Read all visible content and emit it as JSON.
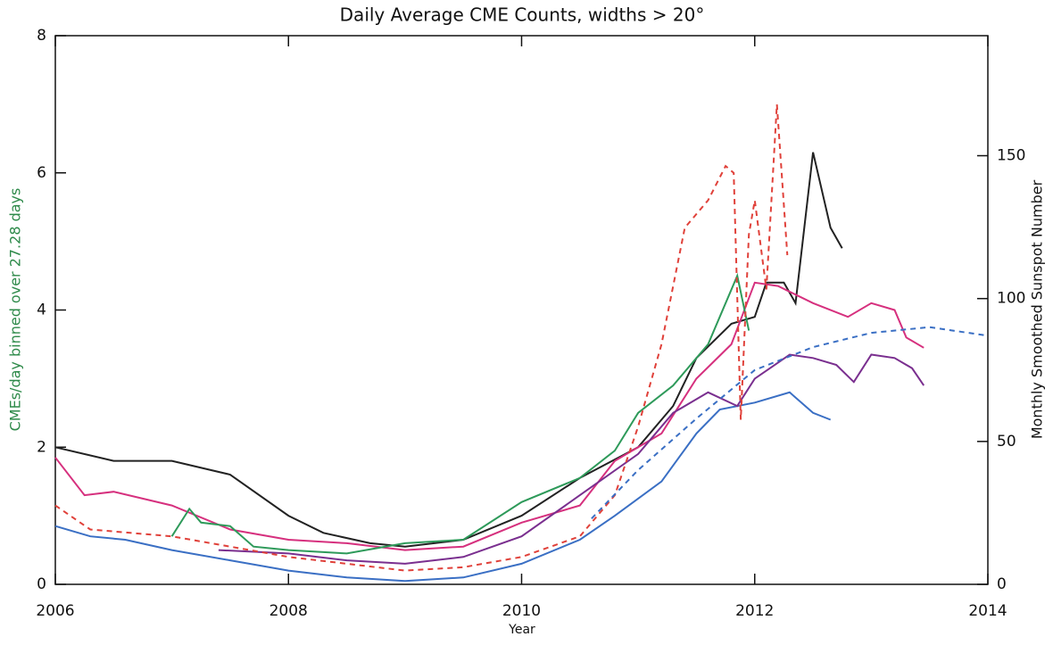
{
  "chart_data": {
    "type": "line",
    "title": "Daily Average CME Counts, widths >  20°",
    "x_label": "Year",
    "y_label": "CMEs/day binned over 27.28 days",
    "y2_label": "Monthly Smoothed Sunspot Number",
    "xlim": [
      2006,
      2014
    ],
    "xticks": [
      2006,
      2008,
      2010,
      2012,
      2014
    ],
    "ylim": [
      0,
      8
    ],
    "yticks": [
      0,
      2,
      4,
      6,
      8
    ],
    "y2lim": [
      0,
      192
    ],
    "y2ticks": [
      0,
      50,
      100,
      150
    ],
    "series": [
      {
        "color": "#222222",
        "dashed": false,
        "x": [
          2006,
          2006.5,
          2007,
          2007.5,
          2008,
          2008.3,
          2008.7,
          2009,
          2009.5,
          2010,
          2010.5,
          2011,
          2011.3,
          2011.5,
          2011.8,
          2012,
          2012.1,
          2012.25,
          2012.35,
          2012.5,
          2012.65,
          2012.75
        ],
        "values": [
          2.0,
          1.8,
          1.8,
          1.6,
          1.0,
          0.75,
          0.6,
          0.55,
          0.65,
          1.0,
          1.55,
          2.0,
          2.6,
          3.3,
          3.8,
          3.9,
          4.4,
          4.4,
          4.1,
          6.3,
          5.2,
          4.9
        ]
      },
      {
        "color": "#d6307e",
        "dashed": false,
        "x": [
          2006,
          2006.25,
          2006.5,
          2007,
          2007.5,
          2008,
          2008.5,
          2009,
          2009.5,
          2010,
          2010.5,
          2010.8,
          2011.2,
          2011.5,
          2011.8,
          2012,
          2012.2,
          2012.5,
          2012.8,
          2013,
          2013.2,
          2013.3,
          2013.45
        ],
        "values": [
          1.85,
          1.3,
          1.35,
          1.15,
          0.8,
          0.65,
          0.6,
          0.5,
          0.55,
          0.9,
          1.15,
          1.8,
          2.2,
          3.0,
          3.5,
          4.4,
          4.35,
          4.1,
          3.9,
          4.1,
          4.0,
          3.6,
          3.45
        ]
      },
      {
        "color": "#2e9a5a",
        "dashed": false,
        "x": [
          2007,
          2007.15,
          2007.25,
          2007.5,
          2007.7,
          2008,
          2008.5,
          2009,
          2009.5,
          2010,
          2010.5,
          2010.8,
          2011,
          2011.3,
          2011.6,
          2011.85,
          2011.95
        ],
        "values": [
          0.7,
          1.1,
          0.9,
          0.85,
          0.55,
          0.5,
          0.45,
          0.6,
          0.65,
          1.2,
          1.55,
          1.95,
          2.5,
          2.9,
          3.5,
          4.5,
          3.7
        ]
      },
      {
        "color": "#3a6fc4",
        "dashed": false,
        "x": [
          2006,
          2006.3,
          2006.6,
          2007,
          2007.5,
          2008,
          2008.5,
          2009,
          2009.5,
          2010,
          2010.5,
          2010.8,
          2011.2,
          2011.5,
          2011.7,
          2012,
          2012.3,
          2012.5,
          2012.65
        ],
        "values": [
          0.85,
          0.7,
          0.65,
          0.5,
          0.35,
          0.2,
          0.1,
          0.05,
          0.1,
          0.3,
          0.65,
          1.0,
          1.5,
          2.2,
          2.55,
          2.65,
          2.8,
          2.5,
          2.4
        ]
      },
      {
        "color": "#7a2f8f",
        "dashed": false,
        "x": [
          2007.4,
          2008,
          2008.5,
          2009,
          2009.5,
          2010,
          2010.5,
          2011,
          2011.3,
          2011.6,
          2011.85,
          2012,
          2012.3,
          2012.5,
          2012.7,
          2012.85,
          2013,
          2013.2,
          2013.35,
          2013.45
        ],
        "values": [
          0.5,
          0.45,
          0.35,
          0.3,
          0.4,
          0.7,
          1.3,
          1.9,
          2.5,
          2.8,
          2.6,
          3.0,
          3.35,
          3.3,
          3.2,
          2.95,
          3.35,
          3.3,
          3.15,
          2.9
        ]
      },
      {
        "color": "#e0413a",
        "dashed": true,
        "x": [
          2006,
          2006.3,
          2007,
          2007.5,
          2008,
          2008.5,
          2009,
          2009.5,
          2010,
          2010.5,
          2010.8,
          2011,
          2011.2,
          2011.4,
          2011.6,
          2011.75,
          2011.82,
          2011.88,
          2011.95,
          2012.0,
          2012.1,
          2012.19,
          2012.28
        ],
        "values": [
          1.15,
          0.8,
          0.7,
          0.55,
          0.4,
          0.3,
          0.2,
          0.25,
          0.4,
          0.7,
          1.3,
          2.3,
          3.5,
          5.2,
          5.6,
          6.1,
          6.0,
          2.4,
          5.1,
          5.6,
          4.3,
          7.0,
          4.8
        ]
      },
      {
        "color": "#3a6fc4",
        "dashed": true,
        "axis": "y2",
        "x": [
          2010.6,
          2011,
          2011.5,
          2012,
          2012.5,
          2013,
          2013.5,
          2014
        ],
        "values": [
          23,
          40,
          58,
          75,
          83,
          88,
          90,
          87
        ]
      }
    ]
  }
}
